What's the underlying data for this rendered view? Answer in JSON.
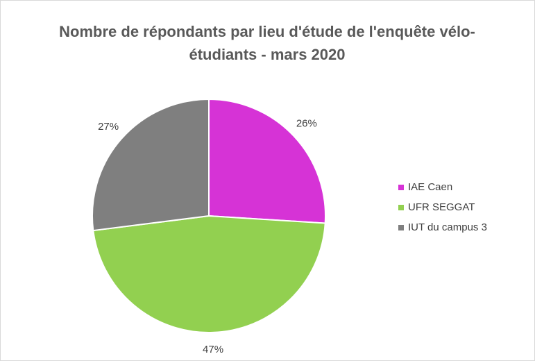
{
  "chart_data": {
    "type": "pie",
    "title": "Nombre de répondants par lieu d'étude de l'enquête vélo-étudiants - mars 2020",
    "categories": [
      "IAE Caen",
      "UFR SEGGAT",
      "IUT du campus 3"
    ],
    "values": [
      26,
      47,
      27
    ],
    "value_labels": [
      "26%",
      "47%",
      "27%"
    ],
    "colors": [
      "#d633d6",
      "#92d050",
      "#7f7f7f"
    ],
    "legend": "right"
  }
}
